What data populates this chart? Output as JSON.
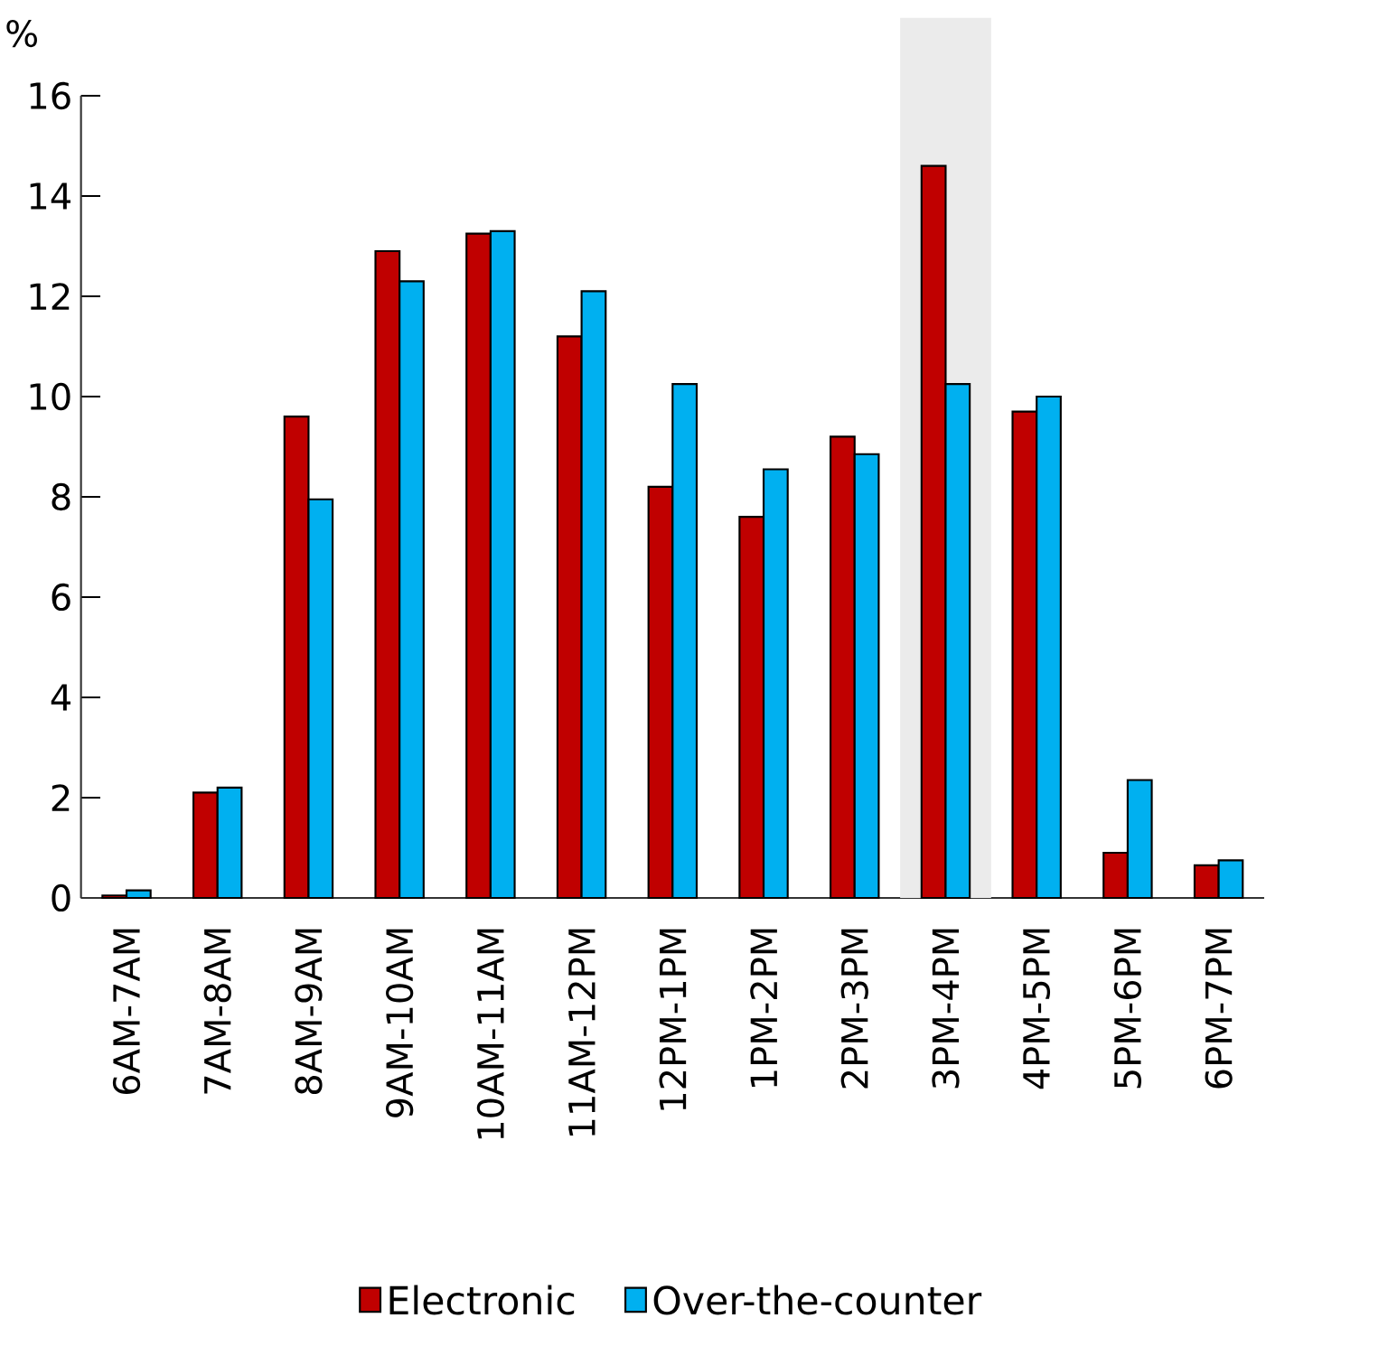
{
  "chart_data": {
    "type": "bar",
    "ylabel": "%",
    "categories": [
      "6AM-7AM",
      "7AM-8AM",
      "8AM-9AM",
      "9AM-10AM",
      "10AM-11AM",
      "11AM-12PM",
      "12PM-1PM",
      "1PM-2PM",
      "2PM-3PM",
      "3PM-4PM",
      "4PM-5PM",
      "5PM-6PM",
      "6PM-7PM"
    ],
    "series": [
      {
        "name": "Electronic",
        "color": "#c00000",
        "values": [
          0.05,
          2.1,
          9.6,
          12.9,
          13.25,
          11.2,
          8.2,
          7.6,
          9.2,
          14.6,
          9.7,
          0.9,
          0.65
        ]
      },
      {
        "name": "Over-the-counter",
        "color": "#00b0f0",
        "values": [
          0.15,
          2.2,
          7.95,
          12.3,
          13.3,
          12.1,
          10.25,
          8.55,
          8.85,
          10.25,
          10.0,
          2.35,
          0.75
        ]
      }
    ],
    "ylim": [
      0,
      16
    ],
    "yticks": [
      0,
      2,
      4,
      6,
      8,
      10,
      12,
      14,
      16
    ],
    "bands": [
      {
        "axis": "x",
        "from": "3PM-4PM",
        "to": "3PM-4PM",
        "color": "#ebebeb"
      }
    ],
    "legend": "bottom"
  }
}
